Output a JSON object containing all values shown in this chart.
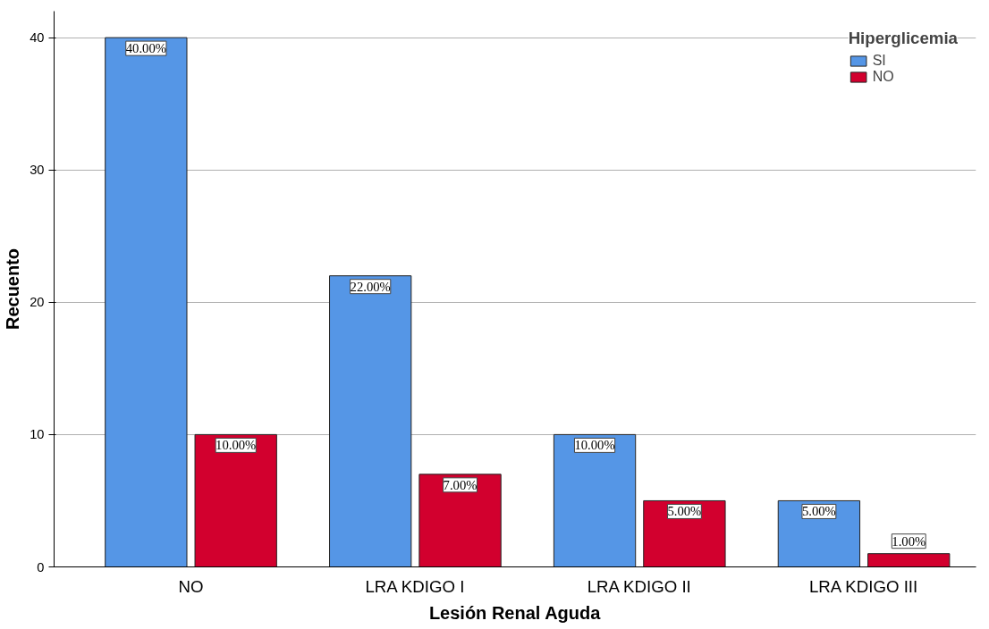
{
  "chart_data": {
    "type": "bar",
    "xlabel": "Lesión Renal Aguda",
    "ylabel": "Recuento",
    "legend_title": "Hiperglicemia",
    "categories": [
      "NO",
      "LRA KDIGO I",
      "LRA KDIGO II",
      "LRA KDIGO III"
    ],
    "series": [
      {
        "name": "SI",
        "color": "#5596e6",
        "values": [
          40,
          22,
          10,
          5
        ],
        "value_labels": [
          "40.00%",
          "22.00%",
          "10.00%",
          "5.00%"
        ]
      },
      {
        "name": "NO",
        "color": "#d2002e",
        "values": [
          10,
          7,
          5,
          1
        ],
        "value_labels": [
          "10.00%",
          "7.00%",
          "5.00%",
          "1.00%"
        ]
      }
    ],
    "ylim": [
      0,
      42
    ],
    "yticks": [
      0,
      10,
      20,
      30,
      40
    ],
    "grid": "y",
    "legend": "top right"
  }
}
